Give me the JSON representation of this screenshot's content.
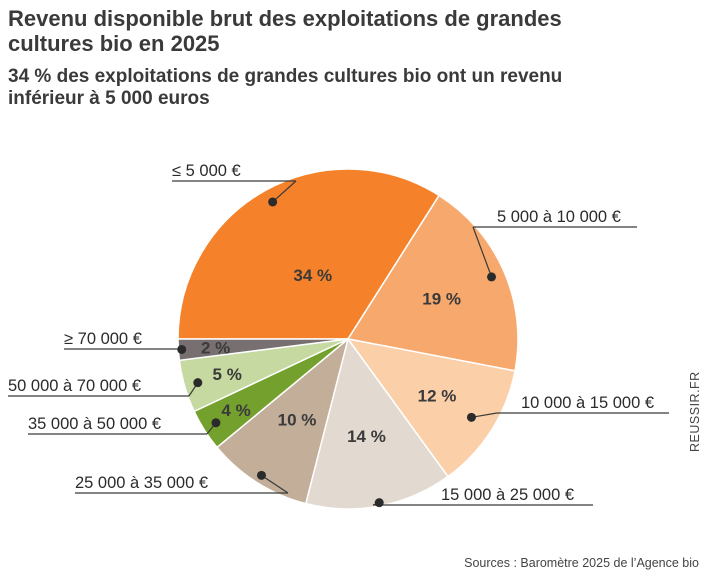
{
  "header": {
    "title": "Revenu disponible brut des exploitations de grandes cultures bio en 2025",
    "subtitle": "34 % des exploitations de grandes cultures bio ont un revenu inférieur à 5 000 euros"
  },
  "footer": {
    "source": "Sources : Baromètre 2025 de l’Agence bio",
    "brand": "REUSSIR.FR"
  },
  "chart_data": {
    "type": "pie",
    "title": "Revenu disponible brut des exploitations de grandes cultures bio en 2025",
    "subtitle": "34 % des exploitations de grandes cultures bio ont un revenu inférieur à 5 000 euros",
    "unit": "%",
    "slices": [
      {
        "label": "≤ 5 000 €",
        "value": 34,
        "value_label": "34 %",
        "color": "#f5822a"
      },
      {
        "label": "5 000 à 10 000 €",
        "value": 19,
        "value_label": "19 %",
        "color": "#f7a96d"
      },
      {
        "label": "10 000 à 15 000 €",
        "value": 12,
        "value_label": "12 %",
        "color": "#fbcfa8"
      },
      {
        "label": "15 000 à 25 000 €",
        "value": 14,
        "value_label": "14 %",
        "color": "#e2dad1"
      },
      {
        "label": "25 000 à 35 000 €",
        "value": 10,
        "value_label": "10 %",
        "color": "#c2ae99"
      },
      {
        "label": "35 000 à 50 000 €",
        "value": 4,
        "value_label": "4 %",
        "color": "#74a12e"
      },
      {
        "label": "50 000 à 70 000 €",
        "value": 5,
        "value_label": "5 %",
        "color": "#c5d9a1"
      },
      {
        "label": "≥ 70 000 €",
        "value": 2,
        "value_label": "2 %",
        "color": "#787070"
      }
    ]
  }
}
